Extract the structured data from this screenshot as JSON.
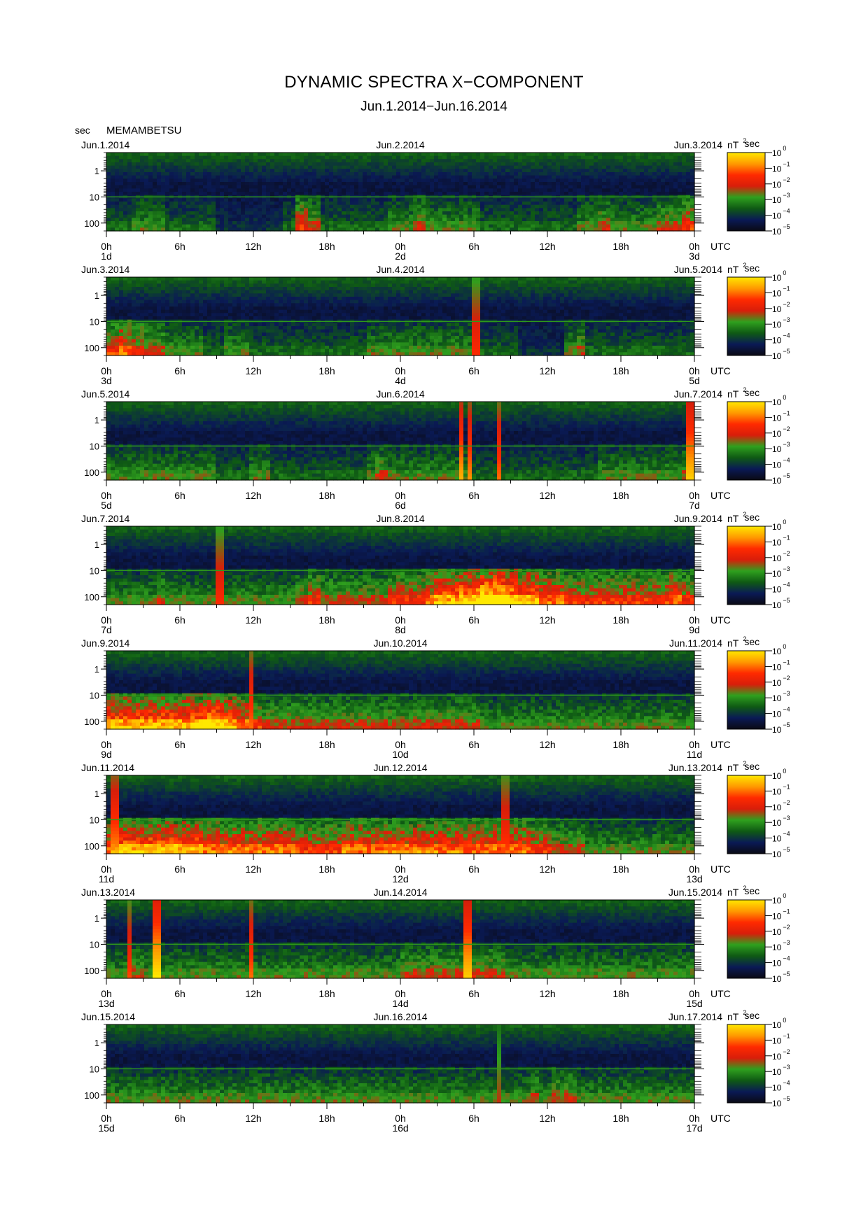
{
  "title": "DYNAMIC SPECTRA X−COMPONENT",
  "subtitle": "Jun.1.2014−Jun.16.2014",
  "unit_label": "sec",
  "station": "MEMAMBETSU",
  "colors": {
    "scale": [
      "#0a0a14",
      "#0a1a55",
      "#0f5a14",
      "#2fa01e",
      "#d81e0a",
      "#ff2a00",
      "#ff9a00",
      "#ffe800"
    ],
    "background": "#0b0b1a"
  },
  "chart_data": {
    "type": "heatmap",
    "period_axis": {
      "label": "sec",
      "scale": "log",
      "tick_labels": [
        "1",
        "10",
        "100"
      ],
      "tick_values": [
        1,
        10,
        100
      ],
      "range": [
        0.2,
        200
      ]
    },
    "time_axis": {
      "hour_labels": [
        "0h",
        "6h",
        "12h",
        "18h",
        "0h",
        "6h",
        "12h",
        "18h",
        "0h"
      ],
      "utc_label": "UTC"
    },
    "colorbar": {
      "unit": "nT",
      "unit_sup": "2",
      "unit_suffix": "sec",
      "scale": "log",
      "tick_labels": [
        {
          "base": "10",
          "exp": "0"
        },
        {
          "base": "10",
          "exp": "−1"
        },
        {
          "base": "10",
          "exp": "−2"
        },
        {
          "base": "10",
          "exp": "−3"
        },
        {
          "base": "10",
          "exp": "−4"
        },
        {
          "base": "10",
          "exp": "−5"
        }
      ],
      "range": [
        1e-05,
        1
      ]
    },
    "panels": [
      {
        "left_date": "Jun.1.2014",
        "mid_date": "Jun.2.2014",
        "right_date": "Jun.3.2014",
        "day_labels": [
          "1d",
          "2d",
          "3d"
        ],
        "activity": [
          2,
          2,
          3,
          3,
          3,
          2,
          2,
          2,
          2,
          1,
          1,
          1,
          1,
          1,
          1,
          2,
          5,
          4,
          2,
          2,
          2,
          2,
          2,
          2,
          3,
          3,
          4,
          3,
          3,
          3,
          3,
          3,
          2,
          2,
          2,
          2,
          2,
          2,
          2,
          2,
          3,
          3,
          4,
          3,
          3,
          3,
          3,
          4,
          4,
          5
        ],
        "spikes": []
      },
      {
        "left_date": "Jun.3.2014",
        "mid_date": "Jun.4.2014",
        "right_date": "Jun.5.2014",
        "day_labels": [
          "3d",
          "4d",
          "5d"
        ],
        "activity": [
          5,
          6,
          5,
          4,
          4,
          3,
          3,
          3,
          2,
          2,
          3,
          3,
          2,
          2,
          2,
          2,
          2,
          2,
          2,
          2,
          2,
          2,
          3,
          3,
          3,
          3,
          3,
          3,
          3,
          3,
          3,
          2,
          2,
          2,
          2,
          1,
          1,
          1,
          1,
          3,
          4,
          2,
          2,
          2,
          2,
          2,
          2,
          2,
          2,
          2
        ],
        "spikes": [
          {
            "t": 0.631,
            "level": 0.7
          }
        ]
      },
      {
        "left_date": "Jun.5.2014",
        "mid_date": "Jun.6.2014",
        "right_date": "Jun.7.2014",
        "day_labels": [
          "5d",
          "6d",
          "7d"
        ],
        "activity": [
          3,
          3,
          3,
          3,
          3,
          3,
          3,
          3,
          3,
          2,
          2,
          2,
          3,
          3,
          2,
          2,
          2,
          2,
          2,
          2,
          2,
          2,
          3,
          4,
          3,
          3,
          3,
          3,
          3,
          3,
          3,
          2,
          2,
          2,
          2,
          2,
          2,
          2,
          2,
          2,
          2,
          2,
          3,
          3,
          3,
          3,
          3,
          3,
          3,
          4
        ],
        "spikes": [
          {
            "t": 0.605,
            "level": 0.9
          },
          {
            "t": 0.618,
            "level": 0.85
          },
          {
            "t": 0.67,
            "level": 0.8
          },
          {
            "t": 0.995,
            "level": 0.95
          }
        ]
      },
      {
        "left_date": "Jun.7.2014",
        "mid_date": "Jun.8.2014",
        "right_date": "Jun.9.2014",
        "day_labels": [
          "7d",
          "8d",
          "9d"
        ],
        "activity": [
          3,
          3,
          3,
          3,
          4,
          3,
          3,
          3,
          3,
          3,
          3,
          3,
          3,
          3,
          3,
          3,
          4,
          5,
          4,
          4,
          4,
          4,
          4,
          4,
          5,
          5,
          5,
          6,
          7,
          7,
          8,
          8,
          9,
          9,
          8,
          7,
          7,
          6,
          6,
          5,
          5,
          5,
          5,
          5,
          5,
          5,
          5,
          5,
          6,
          5
        ],
        "spikes": [
          {
            "t": 0.189,
            "level": 0.7
          }
        ]
      },
      {
        "left_date": "Jun.9.2014",
        "mid_date": "Jun.10.2014",
        "right_date": "Jun.11.2014",
        "day_labels": [
          "9d",
          "10d",
          "11d"
        ],
        "activity": [
          7,
          7,
          7,
          7,
          7,
          7,
          7,
          7,
          8,
          8,
          7,
          6,
          5,
          4,
          4,
          4,
          4,
          4,
          4,
          4,
          4,
          4,
          4,
          4,
          4,
          4,
          4,
          4,
          4,
          4,
          4,
          4,
          3,
          3,
          3,
          3,
          3,
          3,
          3,
          3,
          3,
          3,
          3,
          3,
          3,
          3,
          3,
          3,
          3,
          3
        ],
        "spikes": [
          {
            "t": 0.244,
            "level": 0.8
          }
        ]
      },
      {
        "left_date": "Jun.11.2014",
        "mid_date": "Jun.12.2014",
        "right_date": "Jun.13.2014",
        "day_labels": [
          "11d",
          "12d",
          "13d"
        ],
        "activity": [
          6,
          7,
          7,
          7,
          7,
          7,
          7,
          7,
          6,
          6,
          6,
          6,
          6,
          6,
          6,
          6,
          5,
          5,
          5,
          5,
          6,
          6,
          6,
          6,
          6,
          6,
          6,
          6,
          6,
          6,
          6,
          6,
          6,
          6,
          6,
          6,
          5,
          5,
          4,
          4,
          4,
          3,
          3,
          3,
          3,
          3,
          3,
          3,
          3,
          3
        ],
        "spikes": [
          {
            "t": 0.01,
            "level": 0.85
          },
          {
            "t": 0.679,
            "level": 0.75
          }
        ]
      },
      {
        "left_date": "Jun.13.2014",
        "mid_date": "Jun.14.2014",
        "right_date": "Jun.15.2014",
        "day_labels": [
          "13d",
          "14d",
          "15d"
        ],
        "activity": [
          3,
          3,
          4,
          3,
          3,
          3,
          3,
          3,
          3,
          3,
          3,
          3,
          3,
          3,
          3,
          3,
          3,
          3,
          3,
          3,
          3,
          3,
          3,
          3,
          3,
          4,
          4,
          4,
          4,
          4,
          4,
          4,
          4,
          4,
          3,
          3,
          3,
          3,
          3,
          3,
          3,
          3,
          3,
          3,
          3,
          3,
          3,
          3,
          3,
          3
        ],
        "spikes": [
          {
            "t": 0.037,
            "level": 0.75
          },
          {
            "t": 0.082,
            "level": 1.0
          },
          {
            "t": 0.244,
            "level": 0.8
          },
          {
            "t": 0.615,
            "level": 0.95
          }
        ]
      },
      {
        "left_date": "Jun.15.2014",
        "mid_date": "Jun.16.2014",
        "right_date": "Jun.17.2014",
        "day_labels": [
          "15d",
          "16d",
          "17d"
        ],
        "activity": [
          3,
          3,
          3,
          3,
          3,
          3,
          3,
          3,
          3,
          3,
          3,
          3,
          3,
          3,
          3,
          3,
          3,
          3,
          3,
          3,
          3,
          3,
          3,
          3,
          3,
          3,
          3,
          3,
          3,
          3,
          3,
          3,
          3,
          3,
          3,
          3,
          4,
          3,
          4,
          4,
          3,
          3,
          3,
          3,
          3,
          3,
          3,
          3,
          3,
          3
        ],
        "spikes": [
          {
            "t": 0.668,
            "level": 0.55
          }
        ]
      }
    ]
  }
}
